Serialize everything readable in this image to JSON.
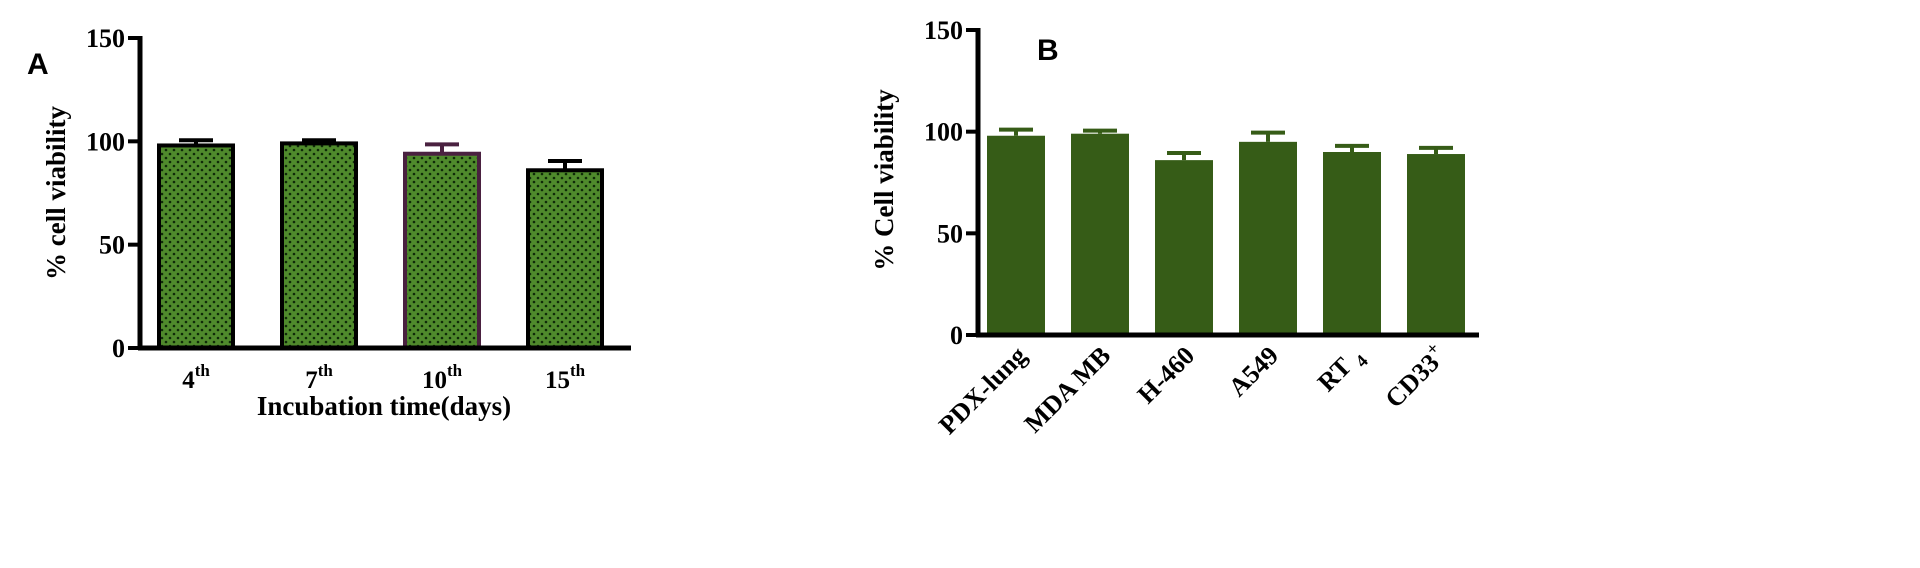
{
  "colors": {
    "bar_fill_dotted": "#4f8a2c",
    "bar_outline_a": "#000000",
    "bar_outline_highlight": "#4a2140",
    "bar_fill_b": "#365c17",
    "axis": "#000000"
  },
  "chart_data": [
    {
      "panel": "A",
      "type": "bar",
      "categories": [
        {
          "base": "4",
          "sup": "th"
        },
        {
          "base": "7",
          "sup": "th"
        },
        {
          "base": "10",
          "sup": "th"
        },
        {
          "base": "15",
          "sup": "th"
        }
      ],
      "values": [
        98,
        99,
        94,
        86
      ],
      "errors": [
        2.5,
        1.5,
        4.5,
        4.5
      ],
      "highlight_index": 2,
      "fill_pattern": "dotted",
      "xlabel": "Incubation time(days)",
      "ylabel": "% cell viability",
      "ylim": [
        0,
        150
      ],
      "yticks": [
        0,
        50,
        100,
        150
      ],
      "grid": false
    },
    {
      "panel": "B",
      "type": "bar",
      "categories": [
        {
          "base": "PDX-lung",
          "sup": "",
          "sub": ""
        },
        {
          "base": "MDA MB",
          "sup": "",
          "sub": ""
        },
        {
          "base": "H-460",
          "sup": "",
          "sub": ""
        },
        {
          "base": "A549",
          "sup": "",
          "sub": ""
        },
        {
          "base": "RT",
          "sup": "",
          "sub": "4"
        },
        {
          "base": "CD33",
          "sup": "+",
          "sub": ""
        }
      ],
      "values": [
        98,
        99,
        86,
        95,
        90,
        89
      ],
      "errors": [
        3,
        1.5,
        3.5,
        4.5,
        3,
        3
      ],
      "xlabel": "",
      "ylabel": "% Cell viability",
      "ylim": [
        0,
        150
      ],
      "yticks": [
        0,
        50,
        100,
        150
      ],
      "grid": false
    }
  ]
}
